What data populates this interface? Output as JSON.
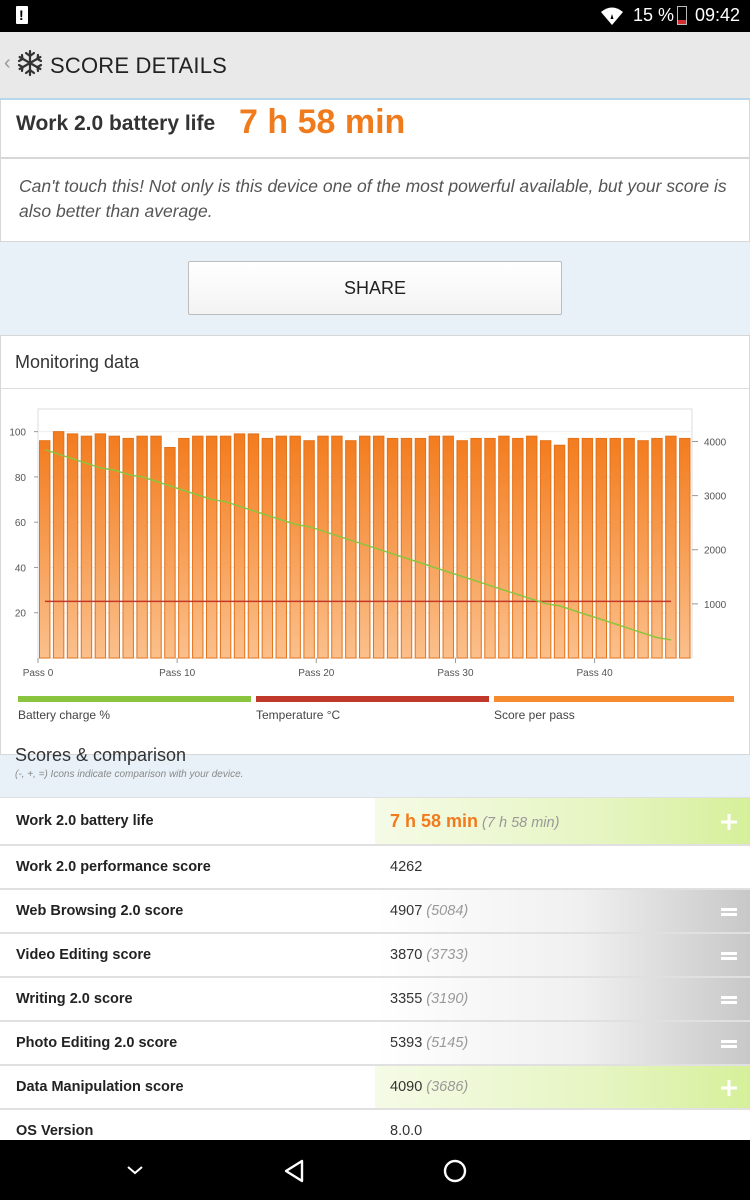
{
  "status": {
    "battery_pct": "15 %",
    "time": "09:42"
  },
  "appbar": {
    "title": "SCORE DETAILS",
    "icon": "snowflake-icon"
  },
  "score_header": {
    "label": "Work 2.0 battery life",
    "value": "7 h 58 min"
  },
  "description": "Can't touch this! Not only is this device one of the most powerful available, but your score is also better than average.",
  "share_label": "SHARE",
  "monitoring": {
    "title": "Monitoring data",
    "legend": [
      "Battery charge %",
      "Temperature °C",
      "Score per pass"
    ]
  },
  "chart_data": {
    "type": "bar",
    "x_ticks": [
      "Pass 0",
      "Pass 10",
      "Pass 20",
      "Pass 30",
      "Pass 40"
    ],
    "left_ticks": [
      "100",
      "80",
      "60",
      "40",
      "20"
    ],
    "right_ticks": [
      "4000",
      "3000",
      "2000",
      "1000"
    ],
    "left_ylim": [
      0,
      110
    ],
    "right_ylim": [
      0,
      4600
    ],
    "series": [
      {
        "name": "Score per pass",
        "axis": "left",
        "values": [
          96,
          100,
          99,
          98,
          99,
          98,
          97,
          98,
          98,
          93,
          97,
          98,
          98,
          98,
          99,
          99,
          97,
          98,
          98,
          96,
          98,
          98,
          96,
          98,
          98,
          97,
          97,
          97,
          98,
          98,
          96,
          97,
          97,
          98,
          97,
          98,
          96,
          94,
          97,
          97,
          97,
          97,
          97,
          96,
          97,
          98,
          97
        ]
      },
      {
        "name": "Battery charge %",
        "axis": "left",
        "values": [
          92,
          90,
          88,
          86,
          84,
          83,
          81,
          80,
          78,
          76,
          74,
          72,
          70,
          69,
          67,
          65,
          63,
          61,
          59,
          58,
          56,
          54,
          52,
          50,
          48,
          46,
          44,
          42,
          40,
          38,
          36,
          34,
          32,
          30,
          28,
          26,
          24,
          23,
          21,
          19,
          17,
          15,
          13,
          11,
          9,
          8
        ]
      },
      {
        "name": "Temperature °C",
        "axis": "left",
        "values": [
          25,
          25,
          25,
          25,
          25,
          25,
          25,
          25,
          25,
          25,
          25,
          25,
          25,
          25,
          25,
          25,
          25,
          25,
          25,
          25,
          25,
          25,
          25,
          25,
          25,
          25,
          25,
          25,
          25,
          25,
          25,
          25,
          25,
          25,
          25,
          25,
          25,
          25,
          25,
          25,
          25,
          25,
          25,
          25,
          25,
          25
        ]
      }
    ],
    "colors": {
      "bars": "#f58a2e",
      "battery": "#8bc53f",
      "temperature": "#c0392b"
    }
  },
  "scores": {
    "title": "Scores & comparison",
    "subtitle": "(-, +, =) Icons indicate comparison with your device.",
    "rows": [
      {
        "name": "Work 2.0 battery life",
        "value": "7 h 58 min",
        "ref": "(7 h 58 min)",
        "cmp": "+"
      },
      {
        "name": "Work 2.0 performance score",
        "value": "4262",
        "ref": "",
        "cmp": ""
      },
      {
        "name": "Web Browsing 2.0 score",
        "value": "4907",
        "ref": "(5084)",
        "cmp": "="
      },
      {
        "name": "Video Editing score",
        "value": "3870",
        "ref": "(3733)",
        "cmp": "="
      },
      {
        "name": "Writing 2.0 score",
        "value": "3355",
        "ref": "(3190)",
        "cmp": "="
      },
      {
        "name": "Photo Editing 2.0 score",
        "value": "5393",
        "ref": "(5145)",
        "cmp": "="
      },
      {
        "name": "Data Manipulation score",
        "value": "4090",
        "ref": "(3686)",
        "cmp": "+"
      },
      {
        "name": "OS Version",
        "value": "8.0.0",
        "ref": "",
        "cmp": ""
      }
    ]
  }
}
